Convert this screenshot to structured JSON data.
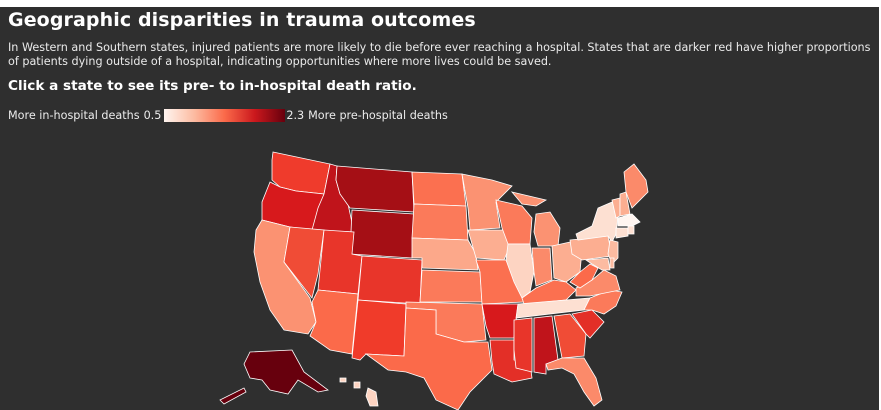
{
  "header": {
    "title": "Geographic disparities in trauma outcomes",
    "description": "In Western and Southern states, injured patients are more likely to die before ever reaching a hospital. States that are darker red have higher proportions of patients dying outside of a hospital, indicating opportunities where more lives could be saved.",
    "call_to_action": "Click a state to see its pre- to in-hospital death ratio."
  },
  "legend": {
    "left_label": "More in-hospital deaths",
    "min_value": "0.5",
    "max_value": "2.3",
    "right_label": "More pre-hospital deaths",
    "ramp_colors": [
      "#fff5f0",
      "#fcbba1",
      "#fb6a4a",
      "#cb181d",
      "#67000d"
    ]
  },
  "map": {
    "states": [
      {
        "id": "WA",
        "color": "#ef3b2c"
      },
      {
        "id": "OR",
        "color": "#d7191c"
      },
      {
        "id": "CA",
        "color": "#fb9272"
      },
      {
        "id": "ID",
        "color": "#c0141b"
      },
      {
        "id": "NV",
        "color": "#f04c36"
      },
      {
        "id": "MT",
        "color": "#a50f15"
      },
      {
        "id": "WY",
        "color": "#a50f15"
      },
      {
        "id": "UT",
        "color": "#e8352a"
      },
      {
        "id": "CO",
        "color": "#e8352a"
      },
      {
        "id": "AZ",
        "color": "#fb6a4a"
      },
      {
        "id": "NM",
        "color": "#f03b2a"
      },
      {
        "id": "ND",
        "color": "#fb7050"
      },
      {
        "id": "SD",
        "color": "#fb7a5a"
      },
      {
        "id": "NE",
        "color": "#fca88a"
      },
      {
        "id": "KS",
        "color": "#fb7a5a"
      },
      {
        "id": "OK",
        "color": "#fb7a5a"
      },
      {
        "id": "TX",
        "color": "#fb6a4a"
      },
      {
        "id": "MN",
        "color": "#fb9272"
      },
      {
        "id": "IA",
        "color": "#fcae91"
      },
      {
        "id": "MO",
        "color": "#fb7050"
      },
      {
        "id": "AR",
        "color": "#d7191c"
      },
      {
        "id": "LA",
        "color": "#e32f27"
      },
      {
        "id": "WI",
        "color": "#fb7a5a"
      },
      {
        "id": "IL",
        "color": "#fdd4c2"
      },
      {
        "id": "MI",
        "color": "#fb9272"
      },
      {
        "id": "IN",
        "color": "#fb8a6a"
      },
      {
        "id": "OH",
        "color": "#fcae91"
      },
      {
        "id": "KY",
        "color": "#fb7050"
      },
      {
        "id": "TN",
        "color": "#fde0d2"
      },
      {
        "id": "MS",
        "color": "#e8352a"
      },
      {
        "id": "AL",
        "color": "#c0141b"
      },
      {
        "id": "GA",
        "color": "#f04c36"
      },
      {
        "id": "FL",
        "color": "#fb8a6a"
      },
      {
        "id": "SC",
        "color": "#e32f27"
      },
      {
        "id": "NC",
        "color": "#fb7a5a"
      },
      {
        "id": "VA",
        "color": "#fb8a6a"
      },
      {
        "id": "WV",
        "color": "#fb6a4a"
      },
      {
        "id": "PA",
        "color": "#fcae91"
      },
      {
        "id": "NY",
        "color": "#fde0d2"
      },
      {
        "id": "NJ",
        "color": "#fcbba1"
      },
      {
        "id": "MD",
        "color": "#fcbba1"
      },
      {
        "id": "DE",
        "color": "#fcbba1"
      },
      {
        "id": "VT",
        "color": "#fcae91"
      },
      {
        "id": "NH",
        "color": "#fcae91"
      },
      {
        "id": "ME",
        "color": "#fb8a6a"
      },
      {
        "id": "MA",
        "color": "#fff5f0"
      },
      {
        "id": "CT",
        "color": "#fde0d2"
      },
      {
        "id": "RI",
        "color": "#fde0d2"
      },
      {
        "id": "AK",
        "color": "#67000d"
      },
      {
        "id": "HI",
        "color": "#fdd4c2"
      }
    ]
  }
}
